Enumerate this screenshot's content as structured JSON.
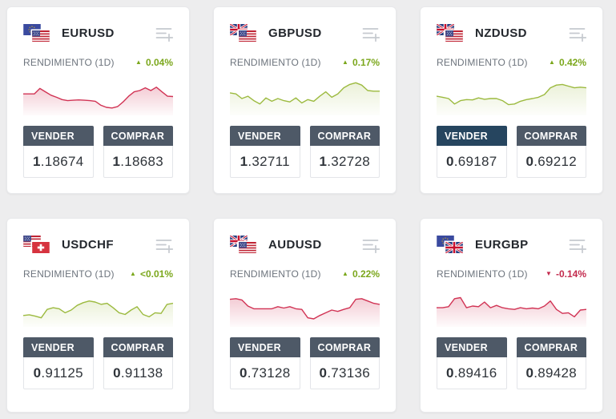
{
  "labels": {
    "performance": "RENDIMIENTO (1D)",
    "sell": "VENDER",
    "buy": "COMPRAR"
  },
  "icons": {
    "watchlist_add": "add-to-watchlist"
  },
  "colors": {
    "page_background": "#ededee",
    "up_green": "#7ba71c",
    "down_red": "#c32a4d",
    "spark_green": "#9cba3f",
    "spark_red": "#d13354",
    "button_normal": "#4e5967",
    "button_active_dark": "#26455f"
  },
  "cards": [
    {
      "symbol": "EURUSD",
      "flags": [
        "EU",
        "US"
      ],
      "change": "0.04%",
      "direction": "up",
      "sell_price": "1.18674",
      "buy_price": "1.18683",
      "sell_active": false,
      "spark_color": "red",
      "spark": [
        52,
        52,
        52,
        68,
        58,
        48,
        42,
        35,
        32,
        33,
        34,
        33,
        32,
        30,
        18,
        12,
        10,
        14,
        28,
        45,
        58,
        62,
        70,
        62,
        72,
        58,
        45,
        44
      ]
    },
    {
      "symbol": "GBPUSD",
      "flags": [
        "GB",
        "US"
      ],
      "change": "0.17%",
      "direction": "up",
      "sell_price": "1.32711",
      "buy_price": "1.32728",
      "sell_active": false,
      "spark_color": "green",
      "spark": [
        55,
        52,
        38,
        45,
        32,
        22,
        40,
        30,
        38,
        32,
        28,
        40,
        25,
        35,
        30,
        45,
        58,
        42,
        52,
        70,
        80,
        85,
        78,
        62,
        60,
        60
      ]
    },
    {
      "symbol": "NZDUSD",
      "flags": [
        "NZ",
        "US"
      ],
      "change": "0.42%",
      "direction": "up",
      "sell_price": "0.69187",
      "buy_price": "0.69212",
      "sell_active": true,
      "spark_color": "green",
      "spark": [
        45,
        42,
        38,
        22,
        32,
        35,
        34,
        40,
        36,
        38,
        38,
        32,
        20,
        22,
        30,
        35,
        38,
        42,
        50,
        70,
        78,
        80,
        75,
        70,
        72,
        70
      ]
    },
    {
      "symbol": "USDCHF",
      "flags": [
        "US",
        "CH"
      ],
      "change": "<0.01%",
      "direction": "up",
      "sell_price": "0.91125",
      "buy_price": "0.91138",
      "sell_active": false,
      "spark_color": "green",
      "spark": [
        22,
        24,
        20,
        15,
        40,
        45,
        42,
        30,
        38,
        52,
        60,
        65,
        62,
        55,
        58,
        45,
        30,
        25,
        38,
        48,
        25,
        18,
        30,
        28,
        55,
        58
      ]
    },
    {
      "symbol": "AUDUSD",
      "flags": [
        "AU",
        "US"
      ],
      "change": "0.22%",
      "direction": "up",
      "sell_price": "0.73128",
      "buy_price": "0.73136",
      "sell_active": false,
      "spark_color": "red",
      "spark": [
        70,
        72,
        68,
        50,
        42,
        42,
        42,
        42,
        48,
        44,
        48,
        42,
        40,
        15,
        12,
        22,
        30,
        38,
        34,
        40,
        45,
        70,
        72,
        65,
        58,
        55
      ]
    },
    {
      "symbol": "EURGBP",
      "flags": [
        "EU",
        "GB"
      ],
      "change": "-0.14%",
      "direction": "down",
      "sell_price": "0.89416",
      "buy_price": "0.89428",
      "sell_active": false,
      "spark_color": "red",
      "spark": [
        45,
        45,
        48,
        72,
        75,
        45,
        50,
        48,
        62,
        45,
        52,
        45,
        42,
        40,
        45,
        42,
        44,
        42,
        50,
        65,
        40,
        28,
        30,
        18,
        38,
        40
      ]
    }
  ]
}
